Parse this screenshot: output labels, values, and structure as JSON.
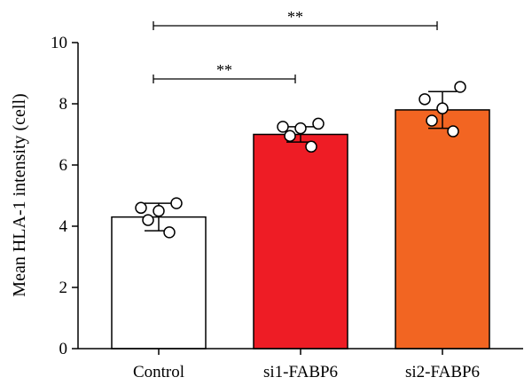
{
  "chart_data": {
    "type": "bar",
    "title": "",
    "xlabel": "",
    "ylabel": "Mean HLA-1 intensity (cell)",
    "ylim": [
      0,
      10
    ],
    "yticks": [
      0,
      2,
      4,
      6,
      8,
      10
    ],
    "grid": false,
    "categories": [
      "Control",
      "si1-FABP6",
      "si2-FABP6"
    ],
    "values": [
      4.3,
      7.0,
      7.8
    ],
    "errors": [
      0.45,
      0.25,
      0.6
    ],
    "colors": [
      "#ffffff",
      "#ee1c25",
      "#f26522"
    ],
    "points": [
      [
        4.75,
        4.6,
        4.5,
        4.2,
        3.8
      ],
      [
        7.35,
        7.25,
        7.2,
        6.95,
        6.6
      ],
      [
        8.55,
        8.15,
        7.85,
        7.45,
        7.1
      ]
    ],
    "significance": [
      {
        "from": 0,
        "to": 1,
        "label": "**"
      },
      {
        "from": 0,
        "to": 2,
        "label": "**"
      }
    ]
  }
}
